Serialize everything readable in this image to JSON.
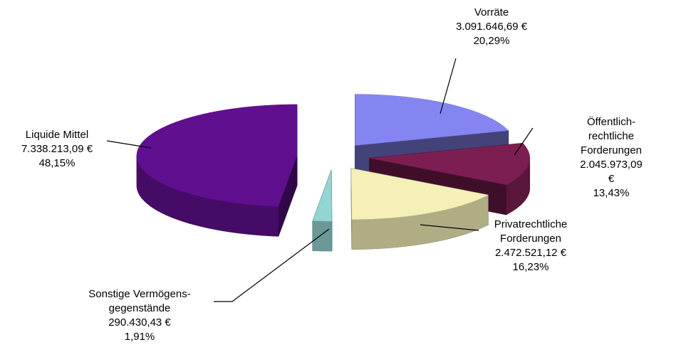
{
  "chart_data": {
    "type": "pie",
    "categories": [
      "Vorräte",
      "Öffentlich-rechtliche\nForderungen",
      "Privatrechtliche\nForderungen",
      "Sonstige Vermögens-\ngegenstände",
      "Liquide Mittel"
    ],
    "values": [
      20.29,
      13.43,
      16.23,
      1.91,
      48.15
    ],
    "value_labels": [
      "20,29%",
      "13,43%",
      "16,23%",
      "1,91%",
      "48,15%"
    ],
    "amounts": [
      3091646.69,
      2045973.09,
      2472521.12,
      290430.43,
      7338213.09
    ],
    "amount_labels": [
      "3.091.646,69 €",
      "2.045.973,09 €",
      "2.472.521,12 €",
      "290.430,43 €",
      "7.338.213,09 €"
    ],
    "colors": [
      "#8585f2",
      "#7d1e52",
      "#f4f0b8",
      "#94d4d2",
      "#60108f"
    ],
    "exploded": true,
    "three_d": true
  }
}
